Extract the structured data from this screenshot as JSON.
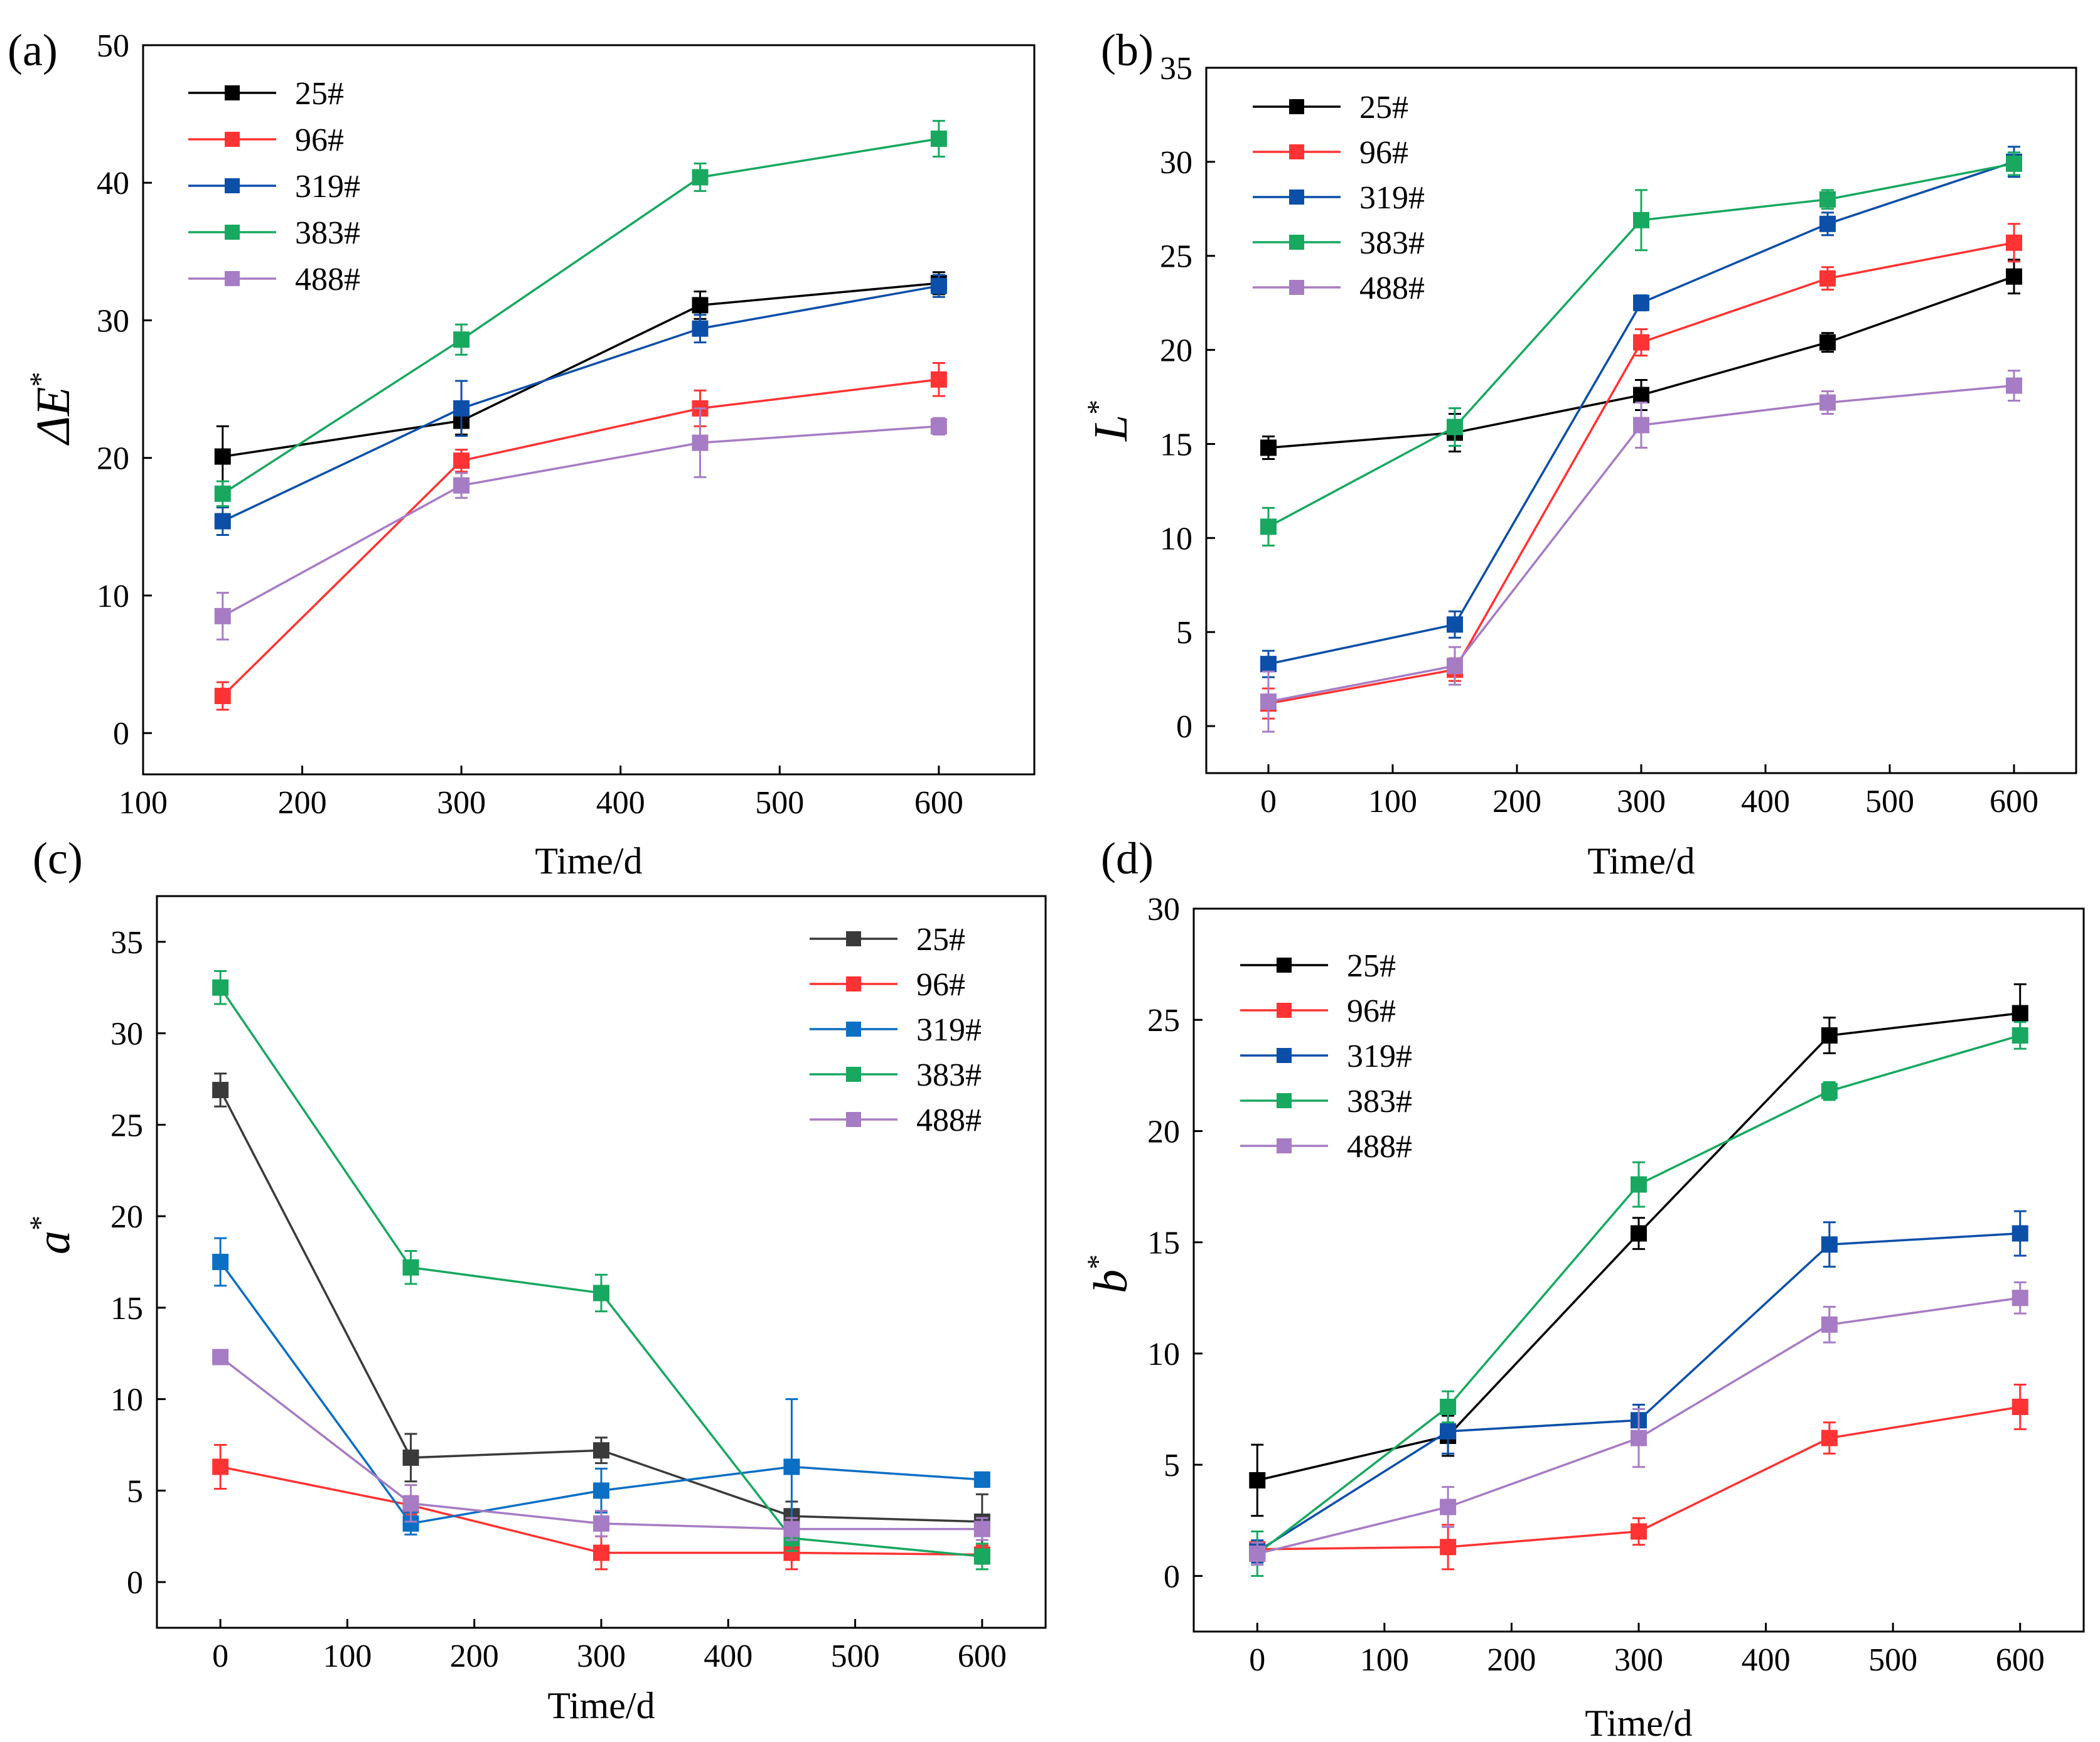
{
  "chart_data": [
    {
      "panel_label": "(a)",
      "type": "line",
      "xlabel": "Time/d",
      "ylabel_main": "ΔE",
      "ylabel_sup": "*",
      "xlim": [
        100,
        660
      ],
      "ylim": [
        -3,
        50
      ],
      "xticks": [
        100,
        200,
        300,
        400,
        500,
        600
      ],
      "yticks": [
        0,
        10,
        20,
        30,
        40,
        50
      ],
      "legend_position": "top-left",
      "series": [
        {
          "name": "25#",
          "color": "#000000",
          "x": [
            150,
            300,
            450,
            600
          ],
          "y": [
            20.1,
            22.7,
            31.1,
            32.7
          ],
          "err": [
            2.2,
            1.0,
            1.0,
            0.8
          ]
        },
        {
          "name": "96#",
          "color": "#ff3333",
          "x": [
            150,
            300,
            450,
            600
          ],
          "y": [
            2.7,
            19.8,
            23.6,
            25.7
          ],
          "err": [
            1.0,
            0.8,
            1.3,
            1.2
          ]
        },
        {
          "name": "319#",
          "color": "#0b4fa8",
          "x": [
            150,
            300,
            450,
            600
          ],
          "y": [
            15.4,
            23.6,
            29.4,
            32.5
          ],
          "err": [
            1.0,
            2.0,
            1.0,
            0.8
          ]
        },
        {
          "name": "383#",
          "color": "#18a860",
          "x": [
            150,
            300,
            450,
            600
          ],
          "y": [
            17.4,
            28.6,
            40.4,
            43.2
          ],
          "err": [
            0.9,
            1.1,
            1.0,
            1.3
          ]
        },
        {
          "name": "488#",
          "color": "#a67cc4",
          "x": [
            150,
            300,
            450,
            600
          ],
          "y": [
            8.5,
            18.0,
            21.1,
            22.3
          ],
          "err": [
            1.7,
            0.9,
            2.5,
            0.6
          ]
        }
      ]
    },
    {
      "panel_label": "(b)",
      "type": "line",
      "xlabel": "Time/d",
      "ylabel_main": "L",
      "ylabel_sup": "*",
      "xlim": [
        -50,
        650
      ],
      "ylim": [
        -2.5,
        35
      ],
      "xticks": [
        0,
        100,
        200,
        300,
        400,
        500,
        600
      ],
      "yticks": [
        0,
        5,
        10,
        15,
        20,
        25,
        30,
        35
      ],
      "legend_position": "top-left",
      "series": [
        {
          "name": "25#",
          "color": "#000000",
          "x": [
            0,
            150,
            300,
            450,
            600
          ],
          "y": [
            14.8,
            15.6,
            17.6,
            20.4,
            23.9
          ],
          "err": [
            0.6,
            1.0,
            0.8,
            0.5,
            0.9
          ]
        },
        {
          "name": "96#",
          "color": "#ff3333",
          "x": [
            0,
            150,
            300,
            450,
            600
          ],
          "y": [
            1.2,
            3.0,
            20.4,
            23.8,
            25.7
          ],
          "err": [
            0.8,
            0.6,
            0.7,
            0.6,
            1.0
          ]
        },
        {
          "name": "319#",
          "color": "#0b4fa8",
          "x": [
            0,
            150,
            300,
            450,
            600
          ],
          "y": [
            3.3,
            5.4,
            22.5,
            26.7,
            30.0
          ],
          "err": [
            0.7,
            0.7,
            0.4,
            0.6,
            0.8
          ]
        },
        {
          "name": "383#",
          "color": "#18a860",
          "x": [
            0,
            150,
            300,
            450,
            600
          ],
          "y": [
            10.6,
            15.9,
            26.9,
            28.0,
            29.9
          ],
          "err": [
            1.0,
            1.0,
            1.6,
            0.5,
            0.6
          ]
        },
        {
          "name": "488#",
          "color": "#a67cc4",
          "x": [
            0,
            150,
            300,
            450,
            600
          ],
          "y": [
            1.3,
            3.2,
            16.0,
            17.2,
            18.1
          ],
          "err": [
            1.6,
            1.0,
            1.2,
            0.6,
            0.8
          ]
        }
      ]
    },
    {
      "panel_label": "(c)",
      "type": "line",
      "xlabel": "Time/d",
      "ylabel_main": "a",
      "ylabel_sup": "*",
      "xlim": [
        -50,
        650
      ],
      "ylim": [
        -2.5,
        37.5
      ],
      "xticks": [
        0,
        100,
        200,
        300,
        400,
        500,
        600
      ],
      "yticks": [
        0,
        5,
        10,
        15,
        20,
        25,
        30,
        35
      ],
      "legend_position": "top-right",
      "series": [
        {
          "name": "25#",
          "color": "#3a3a3a",
          "x": [
            0,
            150,
            300,
            450,
            600
          ],
          "y": [
            26.9,
            6.8,
            7.2,
            3.6,
            3.3
          ],
          "err": [
            0.9,
            1.3,
            0.7,
            0.8,
            1.5
          ]
        },
        {
          "name": "96#",
          "color": "#ff3333",
          "x": [
            0,
            150,
            300,
            450,
            600
          ],
          "y": [
            6.3,
            4.2,
            1.6,
            1.6,
            1.5
          ],
          "err": [
            1.2,
            0.5,
            0.9,
            0.9,
            0.5
          ]
        },
        {
          "name": "319#",
          "color": "#0b6fc4",
          "x": [
            0,
            150,
            300,
            450,
            600
          ],
          "y": [
            17.5,
            3.2,
            5.0,
            6.3,
            5.6
          ],
          "err": [
            1.3,
            0.6,
            1.2,
            3.7,
            0.4
          ]
        },
        {
          "name": "383#",
          "color": "#18a860",
          "x": [
            0,
            150,
            300,
            450,
            600
          ],
          "y": [
            32.5,
            17.2,
            15.8,
            2.4,
            1.4
          ],
          "err": [
            0.9,
            0.9,
            1.0,
            0.7,
            0.7
          ]
        },
        {
          "name": "488#",
          "color": "#a67cc4",
          "x": [
            0,
            150,
            300,
            450,
            600
          ],
          "y": [
            12.3,
            4.3,
            3.2,
            2.9,
            2.9
          ],
          "err": [
            0.3,
            1.0,
            0.7,
            0.6,
            0.6
          ]
        }
      ]
    },
    {
      "panel_label": "(d)",
      "type": "line",
      "xlabel": "Time/d",
      "ylabel_main": "b",
      "ylabel_sup": "*",
      "xlim": [
        -50,
        650
      ],
      "ylim": [
        -2.5,
        30
      ],
      "xticks": [
        0,
        100,
        200,
        300,
        400,
        500,
        600
      ],
      "yticks": [
        0,
        5,
        10,
        15,
        20,
        25,
        30
      ],
      "legend_position": "top-left",
      "series": [
        {
          "name": "25#",
          "color": "#000000",
          "x": [
            0,
            150,
            300,
            450,
            600
          ],
          "y": [
            4.3,
            6.3,
            15.4,
            24.3,
            25.3
          ],
          "err": [
            1.6,
            0.9,
            0.7,
            0.8,
            1.3
          ]
        },
        {
          "name": "96#",
          "color": "#ff3333",
          "x": [
            0,
            150,
            300,
            450,
            600
          ],
          "y": [
            1.2,
            1.3,
            2.0,
            6.2,
            7.6
          ],
          "err": [
            0.3,
            1.0,
            0.6,
            0.7,
            1.0
          ]
        },
        {
          "name": "319#",
          "color": "#0b4fa8",
          "x": [
            0,
            150,
            300,
            450,
            600
          ],
          "y": [
            1.1,
            6.5,
            7.0,
            14.9,
            15.4
          ],
          "err": [
            0.5,
            1.0,
            0.7,
            1.0,
            1.0
          ]
        },
        {
          "name": "383#",
          "color": "#18a860",
          "x": [
            0,
            150,
            300,
            450,
            600
          ],
          "y": [
            1.0,
            7.6,
            17.6,
            21.8,
            24.3
          ],
          "err": [
            1.0,
            0.7,
            1.0,
            0.4,
            0.6
          ]
        },
        {
          "name": "488#",
          "color": "#a67cc4",
          "x": [
            0,
            150,
            300,
            450,
            600
          ],
          "y": [
            1.0,
            3.1,
            6.2,
            11.3,
            12.5
          ],
          "err": [
            0.5,
            0.9,
            1.3,
            0.8,
            0.7
          ]
        }
      ]
    }
  ]
}
